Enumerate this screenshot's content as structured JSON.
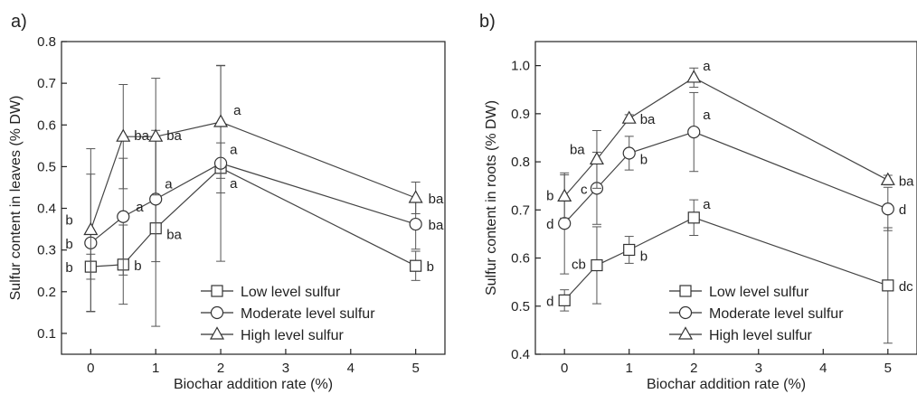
{
  "chart_data": [
    {
      "type": "line",
      "panel_label": "a)",
      "xlabel": "Biochar addition rate (%)",
      "ylabel": "Sulfur content in leaves (% DW)",
      "xlim": [
        -0.45,
        5.45
      ],
      "ylim": [
        0.05,
        0.8
      ],
      "xticks": [
        "0",
        "1",
        "2",
        "3",
        "4",
        "5"
      ],
      "yticks": [
        "0.1",
        "0.2",
        "0.3",
        "0.4",
        "0.5",
        "0.6",
        "0.7",
        "0.8"
      ],
      "grid": false,
      "legend_position": "bottom-right",
      "x": [
        0,
        0.5,
        1,
        2,
        5
      ],
      "series": [
        {
          "name": "Low level sulfur",
          "marker": "square",
          "values": [
            0.26,
            0.265,
            0.352,
            0.497,
            0.262
          ],
          "error": [
            0.03,
            0.095,
            0.235,
            0.06,
            0.035
          ],
          "labels": [
            "b",
            "b",
            "ba",
            "a",
            "b"
          ]
        },
        {
          "name": "Moderate level sulfur",
          "marker": "circle",
          "values": [
            0.317,
            0.38,
            0.422,
            0.508,
            0.362
          ],
          "error": [
            0.165,
            0.14,
            0.15,
            0.235,
            0.06
          ],
          "labels": [
            "b",
            "a",
            "a",
            "a",
            "ba"
          ]
        },
        {
          "name": "High level sulfur",
          "marker": "triangle",
          "values": [
            0.348,
            0.572,
            0.572,
            0.607,
            0.425
          ],
          "error": [
            0.195,
            0.125,
            0.14,
            0.135,
            0.038
          ],
          "labels": [
            "b",
            "ba",
            "ba",
            "a",
            "ba"
          ]
        }
      ]
    },
    {
      "type": "line",
      "panel_label": "b)",
      "xlabel": "Biochar addition rate (%)",
      "ylabel": "Sulfur content in roots (% DW)",
      "xlim": [
        -0.45,
        5.45
      ],
      "ylim": [
        0.4,
        1.05
      ],
      "xticks": [
        "0",
        "1",
        "2",
        "3",
        "4",
        "5"
      ],
      "yticks": [
        "0.4",
        "0.5",
        "0.6",
        "0.7",
        "0.8",
        "0.9",
        "1.0"
      ],
      "grid": false,
      "legend_position": "bottom-right",
      "x": [
        0,
        0.5,
        1,
        2,
        5
      ],
      "series": [
        {
          "name": "Low level sulfur",
          "marker": "square",
          "values": [
            0.512,
            0.585,
            0.617,
            0.684,
            0.543
          ],
          "error": [
            0.022,
            0.08,
            0.028,
            0.037,
            0.12
          ],
          "labels": [
            "d",
            "cb",
            "b",
            "a",
            "dc"
          ]
        },
        {
          "name": "Moderate level sulfur",
          "marker": "circle",
          "values": [
            0.672,
            0.745,
            0.818,
            0.862,
            0.702
          ],
          "error": [
            0.105,
            0.075,
            0.035,
            0.082,
            0.045
          ],
          "labels": [
            "d",
            "c",
            "b",
            "a",
            "d"
          ]
        },
        {
          "name": "High level sulfur",
          "marker": "triangle",
          "values": [
            0.728,
            0.805,
            0.89,
            0.975,
            0.762
          ],
          "error": [
            0.045,
            0.06,
            0.008,
            0.02,
            0.01
          ],
          "labels": [
            "b",
            "ba",
            "ba",
            "a",
            "ba"
          ]
        }
      ]
    }
  ]
}
